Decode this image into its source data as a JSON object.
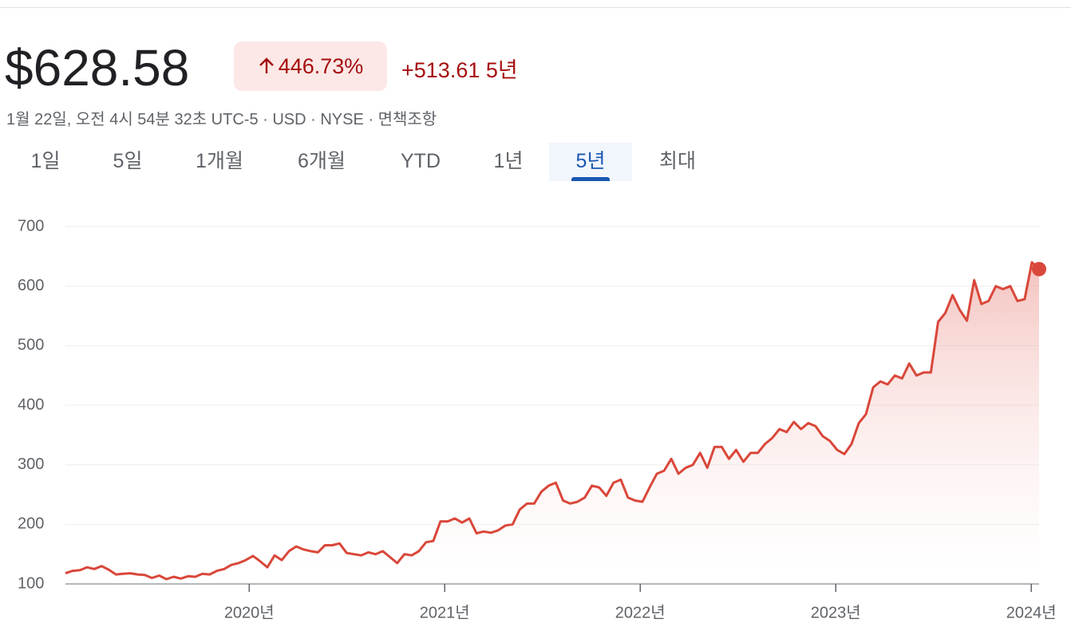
{
  "header": {
    "price": "$628.58",
    "change_pct": "446.73%",
    "change_abs": "+513.61",
    "period": "5년",
    "meta": "1월 22일, 오전 4시 54분 32초 UTC-5 · USD · NYSE · 면책조항"
  },
  "tabs": [
    "1일",
    "5일",
    "1개월",
    "6개월",
    "YTD",
    "1년",
    "5년",
    "최대"
  ],
  "selected_tab": 6,
  "chart_data": {
    "type": "line",
    "color": "#d9473a",
    "values": [
      118,
      122,
      123,
      128,
      125,
      130,
      124,
      116,
      117,
      118,
      116,
      115,
      110,
      114,
      108,
      112,
      109,
      113,
      112,
      117,
      116,
      122,
      125,
      132,
      135,
      140,
      147,
      138,
      128,
      148,
      140,
      155,
      163,
      158,
      155,
      153,
      165,
      165,
      168,
      152,
      150,
      148,
      153,
      150,
      155,
      145,
      135,
      150,
      148,
      155,
      170,
      172,
      205,
      205,
      210,
      203,
      210,
      185,
      188,
      186,
      190,
      198,
      200,
      225,
      235,
      235,
      255,
      265,
      270,
      240,
      235,
      238,
      245,
      265,
      262,
      248,
      270,
      275,
      245,
      240,
      238,
      262,
      285,
      290,
      310,
      285,
      295,
      300,
      320,
      295,
      330,
      330,
      310,
      325,
      305,
      320,
      320,
      335,
      345,
      360,
      355,
      372,
      360,
      370,
      365,
      348,
      340,
      325,
      318,
      335,
      370,
      385,
      430,
      440,
      435,
      450,
      445,
      470,
      450,
      455,
      455,
      540,
      555,
      585,
      560,
      542,
      610,
      570,
      575,
      600,
      595,
      600,
      575,
      578,
      640,
      628.58
    ],
    "ylim": [
      100,
      700
    ],
    "yticks": [
      100,
      200,
      300,
      400,
      500,
      600,
      700
    ],
    "xlim": [
      2019.06,
      2024.04
    ],
    "xticks": [
      {
        "value": 2020,
        "label": "2020년"
      },
      {
        "value": 2021,
        "label": "2021년"
      },
      {
        "value": 2022,
        "label": "2022년"
      },
      {
        "value": 2023,
        "label": "2023년"
      },
      {
        "value": 2024,
        "label": "2024년"
      }
    ],
    "grid": true
  }
}
